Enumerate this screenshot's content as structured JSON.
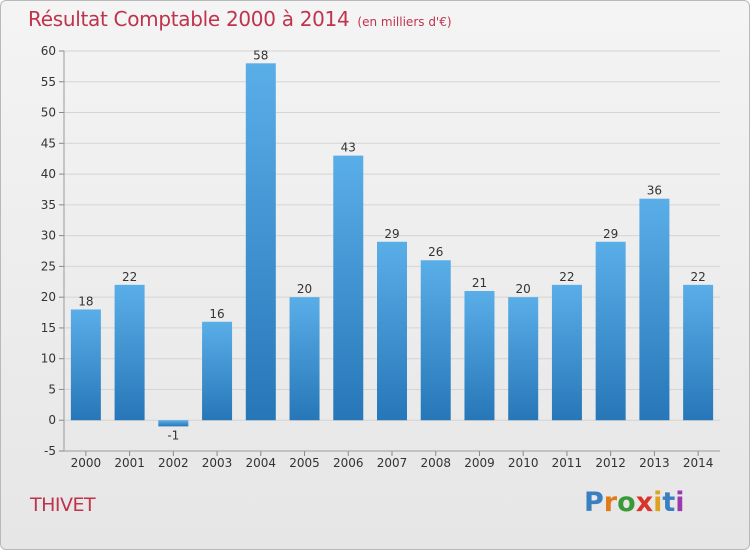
{
  "title": "Résultat Comptable 2000 à 2014",
  "subtitle": "(en milliers d'€)",
  "commune": "THIVET",
  "logo": {
    "text": "Proxiti",
    "letter_colors": [
      "#3a7fc0",
      "#e07b1c",
      "#3a9a3a",
      "#d9342b",
      "#e0a020",
      "#3a7fc0",
      "#9a3ab0"
    ]
  },
  "colors": {
    "title": "#c0334d",
    "bar_light": "#5aaee8",
    "bar_dark": "#2777b8",
    "grid": "#d4d4d4",
    "axis_text": "#333333"
  },
  "chart_data": {
    "type": "bar",
    "categories": [
      "2000",
      "2001",
      "2002",
      "2003",
      "2004",
      "2005",
      "2006",
      "2007",
      "2008",
      "2009",
      "2010",
      "2011",
      "2012",
      "2013",
      "2014"
    ],
    "values": [
      18,
      22,
      -1,
      16,
      58,
      20,
      43,
      29,
      26,
      21,
      20,
      22,
      29,
      36,
      22
    ],
    "ylim": [
      -5,
      60
    ],
    "yticks": [
      -5,
      0,
      5,
      10,
      15,
      20,
      25,
      30,
      35,
      40,
      45,
      50,
      55,
      60
    ],
    "grid": true,
    "data_labels": true
  }
}
